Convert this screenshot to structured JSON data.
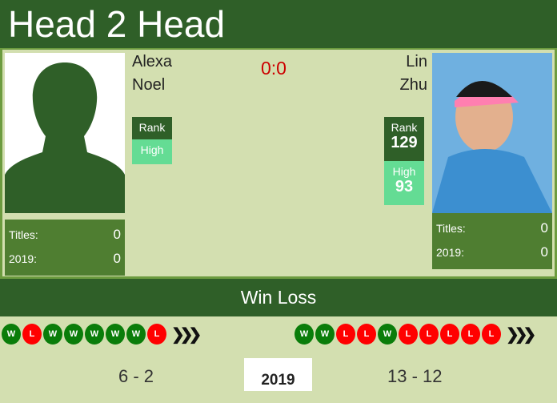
{
  "header": {
    "title": "Head 2 Head"
  },
  "score": "0:0",
  "player1": {
    "first": "Alexa",
    "last": "Noel",
    "rank_label": "Rank",
    "rank": "",
    "high_label": "High",
    "high": "",
    "titles_label": "Titles:",
    "titles": "0",
    "year_label": "2019:",
    "year_titles": "0",
    "form": [
      "W",
      "L",
      "W",
      "W",
      "W",
      "W",
      "W",
      "L"
    ],
    "record": "6 - 2"
  },
  "player2": {
    "first": "Lin",
    "last": "Zhu",
    "rank_label": "Rank",
    "rank": "129",
    "high_label": "High",
    "high": "93",
    "titles_label": "Titles:",
    "titles": "0",
    "year_label": "2019:",
    "year_titles": "0",
    "form": [
      "W",
      "W",
      "L",
      "L",
      "W",
      "L",
      "L",
      "L",
      "L",
      "L"
    ],
    "record": "13 - 12"
  },
  "section": {
    "title": "Win Loss"
  },
  "year": "2019",
  "colors": {
    "dark_green": "#2f5f28",
    "win": "#0a7d0a",
    "loss": "#ff0000",
    "score": "#cc0000"
  }
}
